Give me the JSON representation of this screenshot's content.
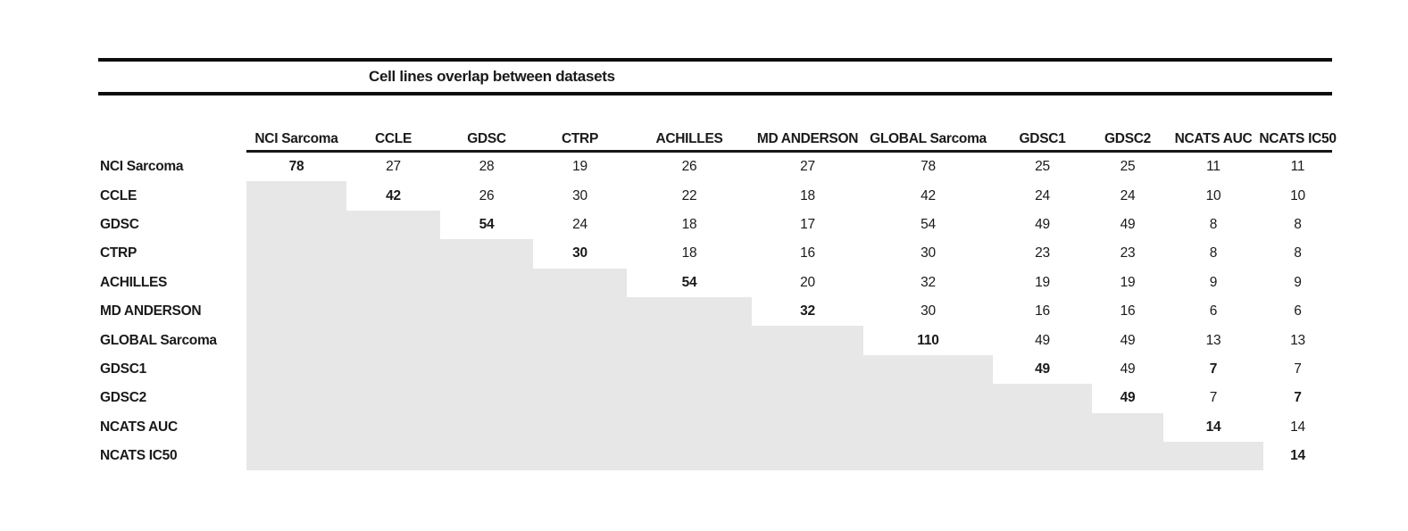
{
  "colors": {
    "background": "#ffffff",
    "rule": "#0d0d0d",
    "text": "#1a1a1a",
    "lower_triangle_fill": "#e7e7e7"
  },
  "chart_data": {
    "type": "table",
    "title": "Cell lines overlap between datasets",
    "layout_note": "triangular overlap matrix; cells below the diagonal are shaded gray with no value; diagonal counts are bold",
    "columns": [
      "NCI Sarcoma",
      "CCLE",
      "GDSC",
      "CTRP",
      "ACHILLES",
      "MD ANDERSON",
      "GLOBAL Sarcoma",
      "GDSC1",
      "GDSC2",
      "NCATS AUC",
      "NCATS IC50"
    ],
    "rows": [
      {
        "label": "NCI Sarcoma",
        "cells": [
          {
            "v": "78",
            "bold": true
          },
          "27",
          "28",
          "19",
          "26",
          "27",
          "78",
          "25",
          "25",
          "11",
          "11"
        ]
      },
      {
        "label": "CCLE",
        "cells": [
          null,
          {
            "v": "42",
            "bold": true
          },
          "26",
          "30",
          "22",
          "18",
          "42",
          "24",
          "24",
          "10",
          "10"
        ]
      },
      {
        "label": "GDSC",
        "cells": [
          null,
          null,
          {
            "v": "54",
            "bold": true
          },
          "24",
          "18",
          "17",
          "54",
          "49",
          "49",
          "8",
          "8"
        ]
      },
      {
        "label": "CTRP",
        "cells": [
          null,
          null,
          null,
          {
            "v": "30",
            "bold": true
          },
          "18",
          "16",
          "30",
          "23",
          "23",
          "8",
          "8"
        ]
      },
      {
        "label": "ACHILLES",
        "cells": [
          null,
          null,
          null,
          null,
          {
            "v": "54",
            "bold": true
          },
          "20",
          "32",
          "19",
          "19",
          "9",
          "9"
        ]
      },
      {
        "label": "MD ANDERSON",
        "cells": [
          null,
          null,
          null,
          null,
          null,
          {
            "v": "32",
            "bold": true
          },
          "30",
          "16",
          "16",
          "6",
          "6"
        ]
      },
      {
        "label": "GLOBAL Sarcoma",
        "cells": [
          null,
          null,
          null,
          null,
          null,
          null,
          {
            "v": "110",
            "bold": true
          },
          "49",
          "49",
          "13",
          "13"
        ]
      },
      {
        "label": "GDSC1",
        "cells": [
          null,
          null,
          null,
          null,
          null,
          null,
          null,
          {
            "v": "49",
            "bold": true
          },
          "49",
          {
            "v": "7",
            "bold": true
          },
          "7"
        ]
      },
      {
        "label": "GDSC2",
        "cells": [
          null,
          null,
          null,
          null,
          null,
          null,
          null,
          null,
          {
            "v": "49",
            "bold": true
          },
          "7",
          {
            "v": "7",
            "bold": true
          }
        ]
      },
      {
        "label": "NCATS AUC",
        "cells": [
          null,
          null,
          null,
          null,
          null,
          null,
          null,
          null,
          null,
          {
            "v": "14",
            "bold": true
          },
          "14"
        ]
      },
      {
        "label": "NCATS IC50",
        "cells": [
          null,
          null,
          null,
          null,
          null,
          null,
          null,
          null,
          null,
          null,
          {
            "v": "14",
            "bold": true
          }
        ]
      }
    ]
  }
}
